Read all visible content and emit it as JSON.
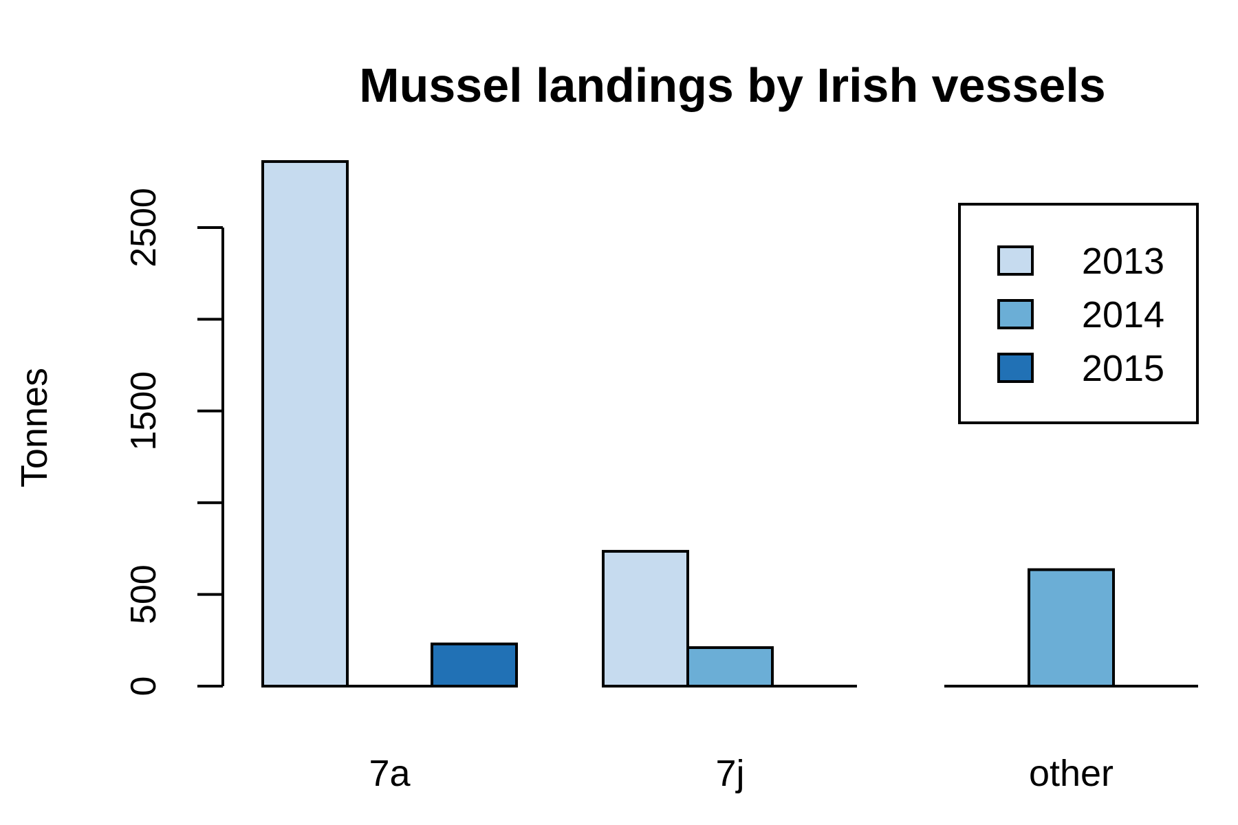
{
  "chart_data": {
    "type": "bar",
    "title": "Mussel landings by Irish vessels",
    "xlabel": "",
    "ylabel": "Tonnes",
    "categories": [
      "7a",
      "7j",
      "other"
    ],
    "series": [
      {
        "name": "2013",
        "color": "#c6dbef",
        "values": [
          2860,
          735,
          0
        ]
      },
      {
        "name": "2014",
        "color": "#6baed6",
        "values": [
          0,
          210,
          635
        ]
      },
      {
        "name": "2015",
        "color": "#2171b5",
        "values": [
          230,
          0,
          0
        ]
      }
    ],
    "ylim": [
      0,
      2860
    ],
    "yticks": [
      0,
      500,
      1000,
      1500,
      2000,
      2500
    ],
    "ytick_labels": [
      "0",
      "500",
      "",
      "1500",
      "",
      "2500"
    ],
    "grid": false,
    "legend": {
      "position": "top-right",
      "labels": [
        "2013",
        "2014",
        "2015"
      ]
    }
  }
}
